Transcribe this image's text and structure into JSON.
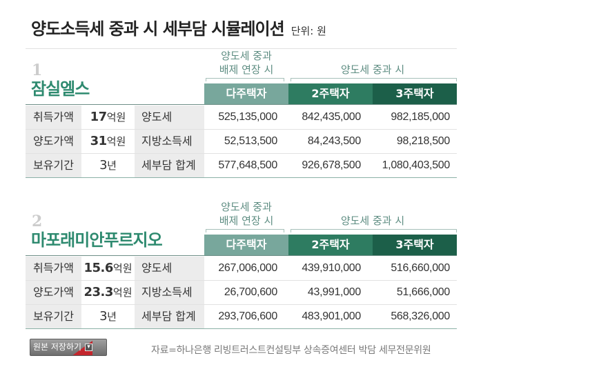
{
  "header": {
    "title": "양도소득세 중과 시 세부담 시뮬레이션",
    "unit": "단위: 원"
  },
  "sections": [
    {
      "number": "1",
      "name": "잠실엘스",
      "group_extension": {
        "line1": "양도세 중과",
        "line2": "배제 연장 시"
      },
      "group_heavy": "양도세 중과 시",
      "columns": [
        "다주택자",
        "2주택자",
        "3주택자"
      ],
      "rows": [
        {
          "label": "취득가액",
          "value": "17",
          "value_unit": "억원",
          "tax_item": "양도세",
          "amounts": [
            "525,135,000",
            "842,435,000",
            "982,185,000"
          ]
        },
        {
          "label": "양도가액",
          "value": "31",
          "value_unit": "억원",
          "tax_item": "지방소득세",
          "amounts": [
            "52,513,500",
            "84,243,500",
            "98,218,500"
          ]
        },
        {
          "label": "보유기간",
          "value": "3",
          "value_unit": "년",
          "tax_item": "세부담 합계",
          "amounts": [
            "577,648,500",
            "926,678,500",
            "1,080,403,500"
          ]
        }
      ]
    },
    {
      "number": "2",
      "name": "마포래미안푸르지오",
      "group_extension": {
        "line1": "양도세 중과",
        "line2": "배제 연장 시"
      },
      "group_heavy": "양도세 중과 시",
      "columns": [
        "다주택자",
        "2주택자",
        "3주택자"
      ],
      "rows": [
        {
          "label": "취득가액",
          "value": "15.6",
          "value_unit": "억원",
          "tax_item": "양도세",
          "amounts": [
            "267,006,000",
            "439,910,000",
            "516,660,000"
          ]
        },
        {
          "label": "양도가액",
          "value": "23.3",
          "value_unit": "억원",
          "tax_item": "지방소득세",
          "amounts": [
            "26,700,600",
            "43,991,000",
            "51,666,000"
          ]
        },
        {
          "label": "보유기간",
          "value": "3",
          "value_unit": "년",
          "tax_item": "세부담 합계",
          "amounts": [
            "293,706,600",
            "483,901,000",
            "568,326,000"
          ]
        }
      ]
    }
  ],
  "footer": {
    "save_button_label": "원본 저장하기",
    "save_button_icon": "dropdown-arrow-icon",
    "source": "자료=하나은행 리빙트러스트컨설팅부 상속증여센터 박담 세무전문위원"
  },
  "colors": {
    "title": "#222222",
    "section_name": "#2e8a6f",
    "group_label": "#5e8d82",
    "col_multi": "#78a79c",
    "col_two": "#2e7c61",
    "col_three": "#1c5f49",
    "label_bg": "#ececec"
  }
}
